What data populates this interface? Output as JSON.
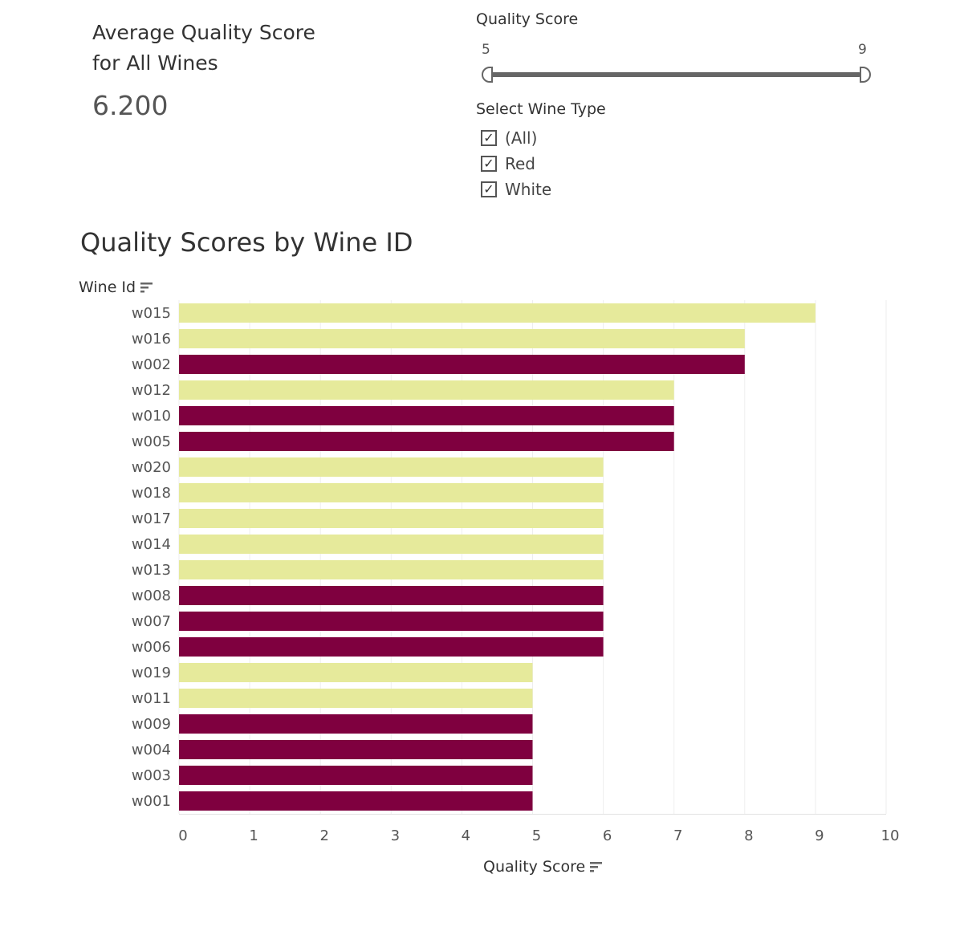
{
  "kpi": {
    "title": "Average Quality Score for All Wines",
    "value": "6.200"
  },
  "quality_filter": {
    "label": "Quality Score",
    "min_label": "5",
    "max_label": "9"
  },
  "type_filter": {
    "label": "Select Wine Type",
    "options": [
      {
        "label": "(All)",
        "checked": true,
        "mark": "✓"
      },
      {
        "label": "Red",
        "checked": true,
        "mark": "✓"
      },
      {
        "label": "White",
        "checked": true,
        "mark": "✓"
      }
    ]
  },
  "colors": {
    "red": "#7f003f",
    "white": "#e6ea9b",
    "grid": "#eeeeee"
  },
  "icons": {
    "sort": "sort-descending-icon",
    "check": "checkmark-icon"
  },
  "chart_data": {
    "type": "bar",
    "orientation": "horizontal",
    "title": "Quality Scores by Wine ID",
    "ylabel": "Wine Id",
    "xlabel": "Quality Score",
    "xlim": [
      0,
      10
    ],
    "xticks": [
      0,
      1,
      2,
      3,
      4,
      5,
      6,
      7,
      8,
      9,
      10
    ],
    "grid": true,
    "categories": [
      "w015",
      "w016",
      "w002",
      "w012",
      "w010",
      "w005",
      "w020",
      "w018",
      "w017",
      "w014",
      "w013",
      "w008",
      "w007",
      "w006",
      "w019",
      "w011",
      "w009",
      "w004",
      "w003",
      "w001"
    ],
    "values": [
      9,
      8,
      8,
      7,
      7,
      7,
      6,
      6,
      6,
      6,
      6,
      6,
      6,
      6,
      5,
      5,
      5,
      5,
      5,
      5
    ],
    "wine_type": [
      "White",
      "White",
      "Red",
      "White",
      "Red",
      "Red",
      "White",
      "White",
      "White",
      "White",
      "White",
      "Red",
      "Red",
      "Red",
      "White",
      "White",
      "Red",
      "Red",
      "Red",
      "Red"
    ]
  }
}
